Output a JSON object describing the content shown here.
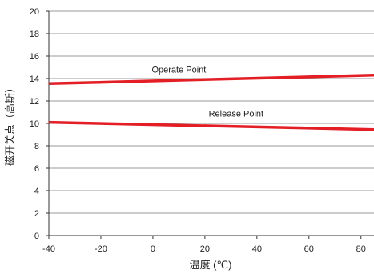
{
  "chart_data": {
    "type": "line",
    "title": "",
    "xlabel": "温度 (℃)",
    "ylabel": "磁开关点（高斯）",
    "xlim": [
      -40,
      85
    ],
    "ylim": [
      0,
      20
    ],
    "xticks": [
      -40,
      -20,
      0,
      20,
      40,
      60,
      80
    ],
    "yticks": [
      0,
      2,
      4,
      6,
      8,
      10,
      12,
      14,
      16,
      18,
      20
    ],
    "grid": {
      "horizontal": true,
      "vertical": false
    },
    "legend": "none",
    "series": [
      {
        "name": "Operate Point",
        "color": "#e31e24",
        "x": [
          -40,
          85
        ],
        "y": [
          13.55,
          14.3
        ]
      },
      {
        "name": "Release Point",
        "color": "#e31e24",
        "x": [
          -40,
          85
        ],
        "y": [
          10.1,
          9.45
        ]
      }
    ],
    "annotations": [
      {
        "text": "Operate Point",
        "x": 10,
        "y": 14.55,
        "series": 0
      },
      {
        "text": "Release Point",
        "x": 32,
        "y": 10.6,
        "series": 1
      }
    ],
    "colors": {
      "grid": "#999999",
      "axis": "#333333"
    }
  }
}
